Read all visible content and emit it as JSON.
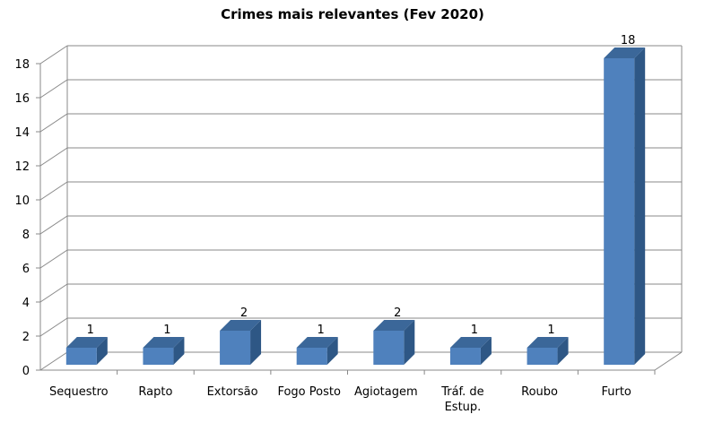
{
  "chart_data": {
    "type": "bar",
    "title": "Crimes mais relevantes (Fev 2020)",
    "categories": [
      "Sequestro",
      "Rapto",
      "Extorsão",
      "Fogo Posto",
      "Agiotagem",
      "Tráf. de Estup.",
      "Roubo",
      "Furto"
    ],
    "category_lines": [
      [
        "Sequestro"
      ],
      [
        "Rapto"
      ],
      [
        "Extorsão"
      ],
      [
        "Fogo Posto"
      ],
      [
        "Agiotagem"
      ],
      [
        "Tráf. de",
        "Estup."
      ],
      [
        "Roubo"
      ],
      [
        "Furto"
      ]
    ],
    "values": [
      1,
      1,
      2,
      1,
      2,
      1,
      1,
      18
    ],
    "data_labels": [
      "1",
      "1",
      "2",
      "1",
      "2",
      "1",
      "1",
      "18"
    ],
    "yticks": [
      "0",
      "2",
      "4",
      "6",
      "8",
      "10",
      "12",
      "14",
      "16",
      "18"
    ],
    "ylim": [
      0,
      18
    ],
    "grid": true,
    "legend": "none",
    "style": "3d-column",
    "colors": {
      "bar_front": "#4F81BD",
      "bar_side": "#2E5785",
      "bar_top": "#3B6799",
      "grid": "#888888",
      "axis": "#888888"
    }
  }
}
